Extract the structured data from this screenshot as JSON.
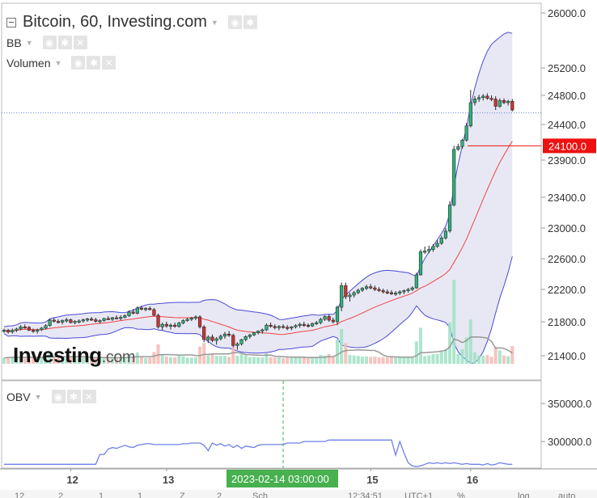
{
  "title": "Bitcoin, 60, Investing.com",
  "indicators": [
    "BB",
    "Volumen"
  ],
  "obv_label": "OBV",
  "logo": {
    "main": "Investing",
    "suffix": ".com"
  },
  "icons": [
    "eye-icon",
    "gear-icon",
    "close-icon",
    "collapse-icon",
    "caret-down-icon"
  ],
  "colors": {
    "up": "#2db37d",
    "down": "#cc3333",
    "band": "#4a4ad8",
    "band_fill": "#e8e8f4",
    "mid": "#ef4444",
    "price_tag": "#ee1111",
    "obv": "#7080e8",
    "crosshair": "#48b04f"
  },
  "chart_data": [
    {
      "type": "candlestick",
      "title": "Bitcoin, 60, Investing.com",
      "ylim": [
        21150,
        26150
      ],
      "y_ticks": [
        "26000.0",
        "25200.0",
        "24800.0",
        "24400.0",
        "23900.0",
        "23400.0",
        "23000.0",
        "22600.0",
        "22200.0",
        "21800.0",
        "21400.0"
      ],
      "x_ticks": [
        "12",
        "13",
        "15",
        "16"
      ],
      "price_label": "24100.0",
      "price_line": 24100,
      "last_price": 24560,
      "overlays": [
        "Bollinger Bands",
        "Volume"
      ],
      "candles": [
        [
          21690,
          21720,
          21670,
          21700
        ],
        [
          21700,
          21715,
          21660,
          21680
        ],
        [
          21680,
          21720,
          21660,
          21700
        ],
        [
          21700,
          21730,
          21680,
          21715
        ],
        [
          21715,
          21760,
          21700,
          21740
        ],
        [
          21740,
          21770,
          21720,
          21735
        ],
        [
          21735,
          21750,
          21690,
          21700
        ],
        [
          21700,
          21720,
          21670,
          21690
        ],
        [
          21690,
          21720,
          21660,
          21705
        ],
        [
          21705,
          21740,
          21690,
          21725
        ],
        [
          21725,
          21770,
          21710,
          21755
        ],
        [
          21755,
          21840,
          21740,
          21820
        ],
        [
          21820,
          21850,
          21790,
          21805
        ],
        [
          21805,
          21830,
          21780,
          21795
        ],
        [
          21795,
          21830,
          21770,
          21815
        ],
        [
          21815,
          21850,
          21790,
          21825
        ],
        [
          21825,
          21840,
          21780,
          21790
        ],
        [
          21790,
          21820,
          21770,
          21805
        ],
        [
          21805,
          21830,
          21780,
          21810
        ],
        [
          21810,
          21840,
          21790,
          21825
        ],
        [
          21825,
          21850,
          21800,
          21835
        ],
        [
          21835,
          21860,
          21810,
          21825
        ],
        [
          21825,
          21850,
          21790,
          21805
        ],
        [
          21805,
          21830,
          21780,
          21815
        ],
        [
          21815,
          21850,
          21800,
          21840
        ],
        [
          21840,
          21870,
          21820,
          21830
        ],
        [
          21830,
          21860,
          21810,
          21850
        ],
        [
          21850,
          21880,
          21830,
          21845
        ],
        [
          21845,
          21880,
          21820,
          21855
        ],
        [
          21855,
          21890,
          21840,
          21875
        ],
        [
          21875,
          21940,
          21860,
          21920
        ],
        [
          21920,
          21960,
          21890,
          21905
        ],
        [
          21905,
          21990,
          21890,
          21970
        ],
        [
          21970,
          22000,
          21940,
          21955
        ],
        [
          21955,
          21980,
          21930,
          21965
        ],
        [
          21965,
          21990,
          21940,
          21950
        ],
        [
          21950,
          21970,
          21870,
          21880
        ],
        [
          21880,
          21900,
          21720,
          21740
        ],
        [
          21740,
          21790,
          21700,
          21770
        ],
        [
          21770,
          21800,
          21730,
          21750
        ],
        [
          21750,
          21780,
          21710,
          21760
        ],
        [
          21760,
          21790,
          21730,
          21745
        ],
        [
          21745,
          21800,
          21730,
          21785
        ],
        [
          21785,
          21830,
          21770,
          21815
        ],
        [
          21815,
          21850,
          21800,
          21830
        ],
        [
          21830,
          21860,
          21810,
          21845
        ],
        [
          21845,
          21880,
          21820,
          21860
        ],
        [
          21860,
          21880,
          21720,
          21740
        ],
        [
          21740,
          21760,
          21560,
          21590
        ],
        [
          21590,
          21640,
          21550,
          21620
        ],
        [
          21620,
          21650,
          21560,
          21580
        ],
        [
          21580,
          21620,
          21530,
          21600
        ],
        [
          21600,
          21650,
          21580,
          21630
        ],
        [
          21630,
          21680,
          21600,
          21655
        ],
        [
          21655,
          21690,
          21620,
          21640
        ],
        [
          21640,
          21660,
          21500,
          21520
        ],
        [
          21520,
          21560,
          21470,
          21540
        ],
        [
          21540,
          21600,
          21520,
          21590
        ],
        [
          21590,
          21640,
          21570,
          21625
        ],
        [
          21625,
          21660,
          21600,
          21645
        ],
        [
          21645,
          21680,
          21630,
          21670
        ],
        [
          21670,
          21700,
          21650,
          21690
        ],
        [
          21690,
          21720,
          21660,
          21705
        ],
        [
          21705,
          21780,
          21690,
          21760
        ],
        [
          21760,
          21790,
          21730,
          21745
        ],
        [
          21745,
          21770,
          21710,
          21730
        ],
        [
          21730,
          21760,
          21700,
          21745
        ],
        [
          21745,
          21770,
          21720,
          21735
        ],
        [
          21735,
          21760,
          21700,
          21725
        ],
        [
          21725,
          21750,
          21700,
          21740
        ],
        [
          21740,
          21770,
          21720,
          21755
        ],
        [
          21755,
          21790,
          21730,
          21770
        ],
        [
          21770,
          21800,
          21740,
          21760
        ],
        [
          21760,
          21780,
          21730,
          21750
        ],
        [
          21750,
          21790,
          21740,
          21780
        ],
        [
          21780,
          21810,
          21760,
          21790
        ],
        [
          21790,
          21850,
          21770,
          21830
        ],
        [
          21830,
          21880,
          21810,
          21865
        ],
        [
          21865,
          21890,
          21800,
          21820
        ],
        [
          21820,
          21850,
          21780,
          21800
        ],
        [
          21800,
          22000,
          21760,
          21980
        ],
        [
          21980,
          22290,
          21930,
          22250
        ],
        [
          22250,
          22290,
          22080,
          22110
        ],
        [
          22110,
          22160,
          22050,
          22130
        ],
        [
          22130,
          22180,
          22100,
          22160
        ],
        [
          22160,
          22210,
          22140,
          22190
        ],
        [
          22190,
          22230,
          22170,
          22215
        ],
        [
          22215,
          22260,
          22190,
          22235
        ],
        [
          22235,
          22270,
          22200,
          22220
        ],
        [
          22220,
          22250,
          22180,
          22200
        ],
        [
          22200,
          22230,
          22170,
          22185
        ],
        [
          22185,
          22210,
          22150,
          22170
        ],
        [
          22170,
          22200,
          22140,
          22160
        ],
        [
          22160,
          22190,
          22130,
          22145
        ],
        [
          22145,
          22180,
          22120,
          22155
        ],
        [
          22155,
          22190,
          22130,
          22170
        ],
        [
          22170,
          22200,
          22140,
          22185
        ],
        [
          22185,
          22220,
          22160,
          22200
        ],
        [
          22200,
          22240,
          22180,
          22220
        ],
        [
          22220,
          22420,
          22210,
          22390
        ],
        [
          22390,
          22720,
          22380,
          22690
        ],
        [
          22690,
          22760,
          22660,
          22700
        ],
        [
          22700,
          22770,
          22670,
          22720
        ],
        [
          22720,
          22790,
          22690,
          22760
        ],
        [
          22760,
          22840,
          22740,
          22800
        ],
        [
          22800,
          22900,
          22780,
          22870
        ],
        [
          22870,
          23000,
          22850,
          22960
        ],
        [
          22960,
          23350,
          22940,
          23300
        ],
        [
          23300,
          24100,
          23280,
          24050
        ],
        [
          24050,
          24130,
          24030,
          24090
        ],
        [
          24090,
          24200,
          24060,
          24180
        ],
        [
          24180,
          24420,
          24160,
          24380
        ],
        [
          24380,
          24880,
          24360,
          24700
        ],
        [
          24700,
          24790,
          24660,
          24750
        ],
        [
          24750,
          24810,
          24710,
          24770
        ],
        [
          24770,
          24820,
          24730,
          24790
        ],
        [
          24790,
          24830,
          24740,
          24760
        ],
        [
          24760,
          24800,
          24720,
          24750
        ],
        [
          24750,
          24790,
          24600,
          24650
        ],
        [
          24650,
          24760,
          24630,
          24730
        ],
        [
          24730,
          24760,
          24680,
          24700
        ],
        [
          24700,
          24740,
          24660,
          24720
        ],
        [
          24720,
          24750,
          24580,
          24600
        ]
      ],
      "volume_label": "Volumen"
    },
    {
      "type": "line",
      "title": "OBV",
      "ylim": [
        265000,
        380000
      ],
      "y_ticks": [
        "350000.0",
        "300000.0"
      ],
      "series": [
        {
          "values": [
            270000,
            270000,
            270000,
            270000,
            270000,
            270000,
            270000,
            270000,
            270000,
            270000,
            270000,
            270000,
            270000,
            270000,
            270000,
            270000,
            270000,
            270000,
            270000,
            270000,
            270000,
            270000,
            270000,
            283000,
            283000,
            290000,
            292000,
            291000,
            293000,
            295000,
            293000,
            292000,
            295000,
            296000,
            297000,
            297000,
            296000,
            296000,
            296000,
            296000,
            296000,
            296000,
            296000,
            297000,
            297000,
            298000,
            298000,
            298000,
            295000,
            288000,
            298000,
            295000,
            297000,
            294000,
            296000,
            292000,
            295000,
            291000,
            294000,
            293000,
            292000,
            295000,
            296000,
            296000,
            296000,
            296000,
            296000,
            296000,
            298000,
            298000,
            298000,
            298000,
            300000,
            300000,
            300000,
            300000,
            300000,
            300000,
            302000,
            302000,
            302000,
            302000,
            302000,
            302000,
            302000,
            302000,
            302000,
            302000,
            302000,
            302000,
            302000,
            302000,
            302000,
            302000,
            282000,
            300000,
            285000,
            272000,
            268000,
            267000,
            268000,
            270000,
            272000,
            271000,
            272000,
            271000,
            272000,
            271000,
            272000,
            271000,
            270000,
            271000,
            270000,
            270000,
            270000,
            269000,
            271000,
            269000,
            270000,
            272000,
            271000,
            270000,
            270000
          ]
        }
      ]
    }
  ],
  "crosshair_label": "2023-02-14 03:00:00",
  "footer_text": [
    "12",
    "2",
    "1",
    "1",
    "Z",
    "2",
    "Sch",
    "12:34:51",
    "UTC+1",
    "%",
    "log",
    "auto"
  ]
}
